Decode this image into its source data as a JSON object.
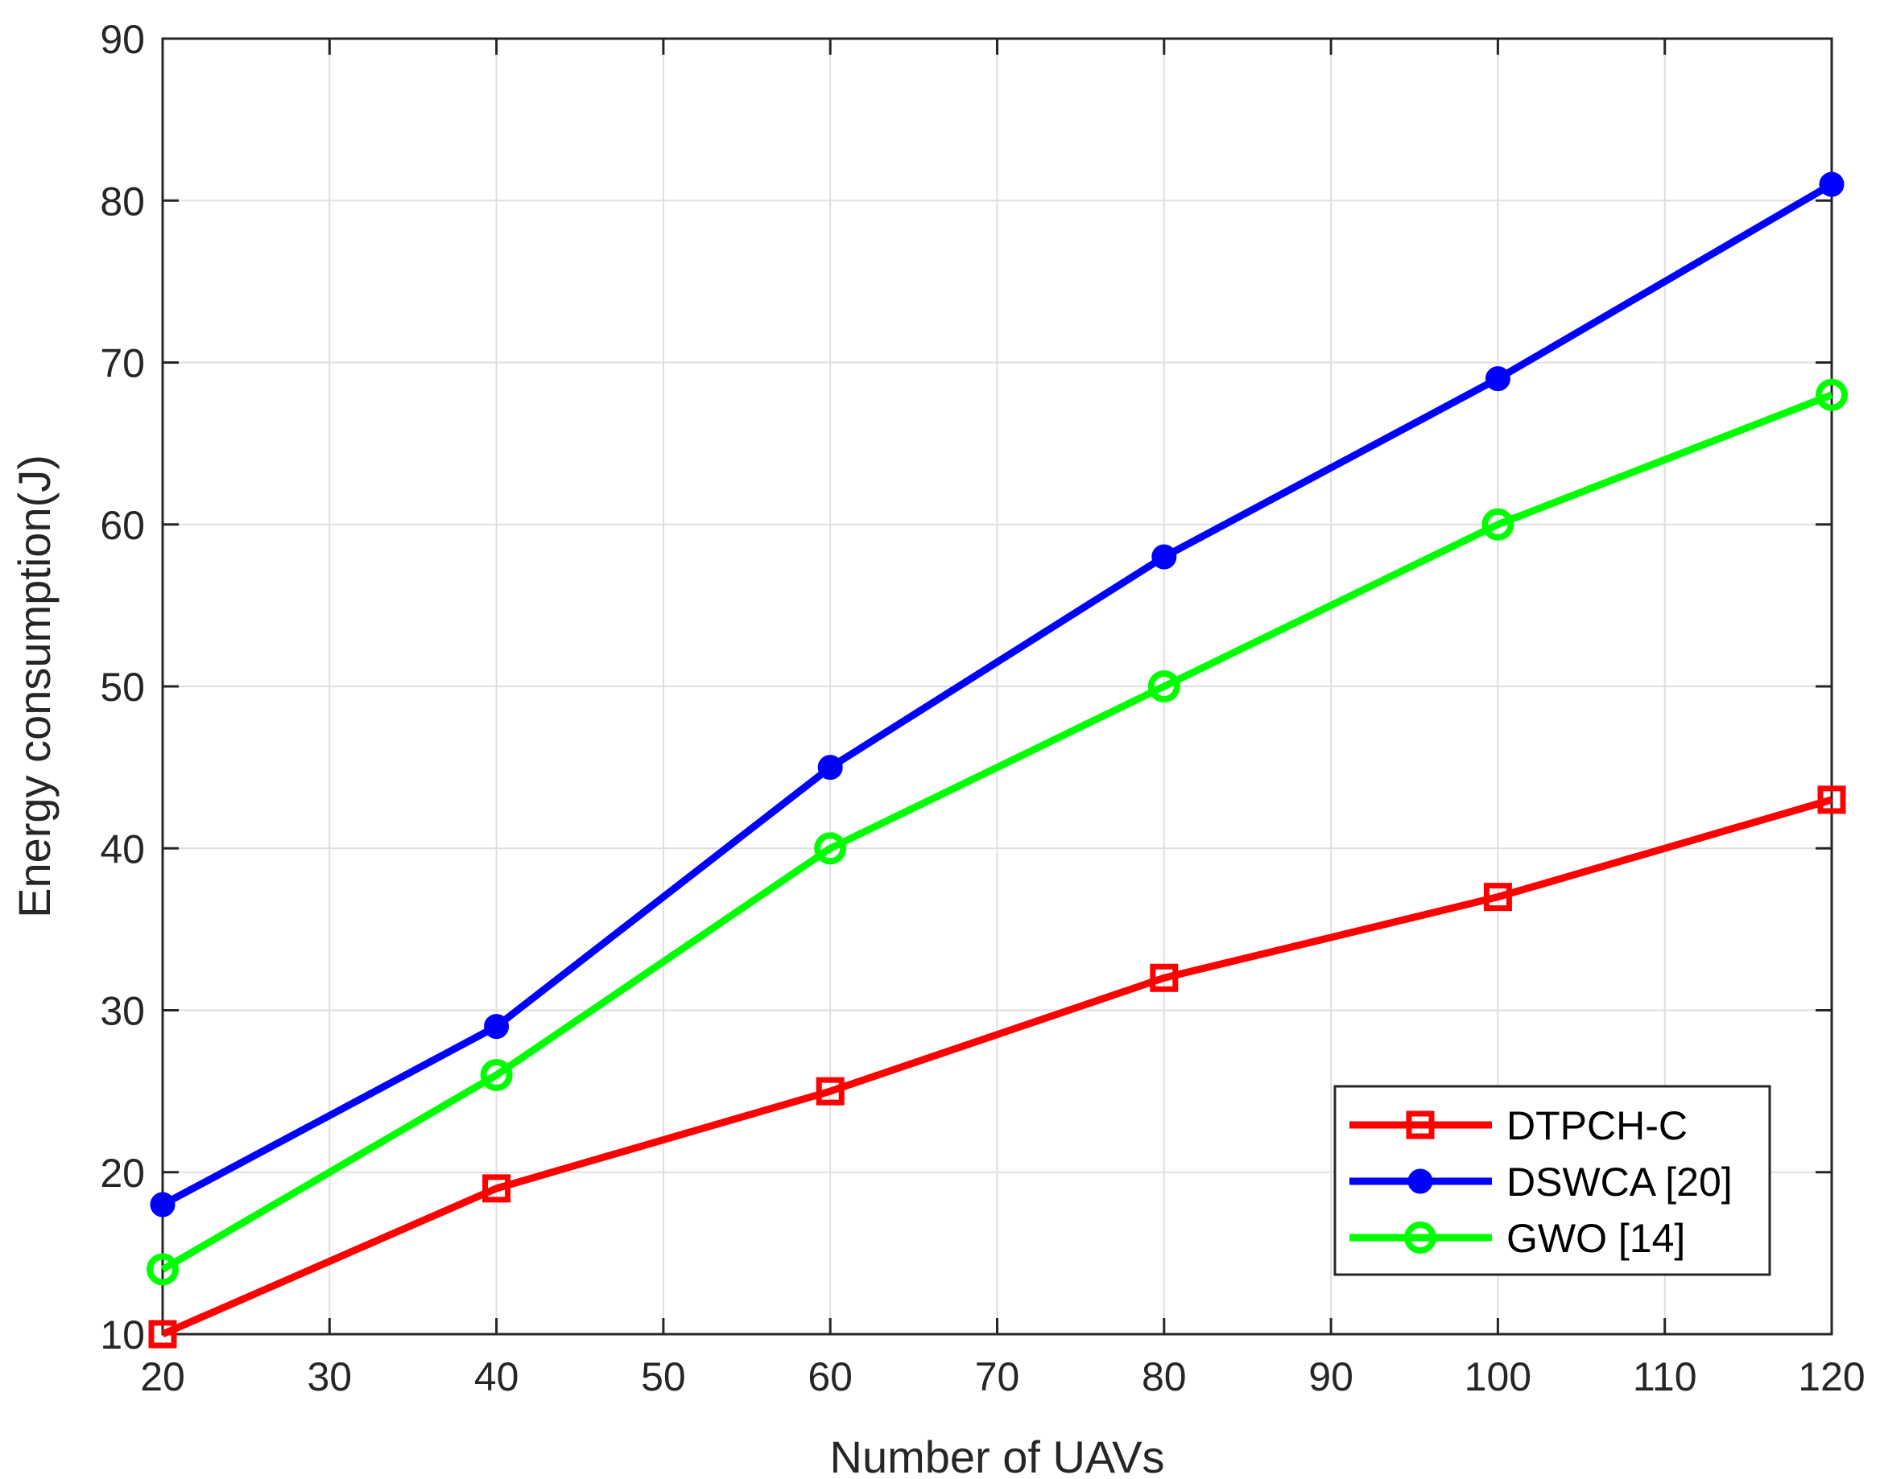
{
  "chart_data": {
    "type": "line",
    "title": "",
    "xlabel": "Number of UAVs",
    "ylabel": "Energy consumption(J)",
    "xlim": [
      20,
      120
    ],
    "ylim": [
      10,
      90
    ],
    "xticks": [
      "20",
      "30",
      "40",
      "50",
      "60",
      "70",
      "80",
      "90",
      "100",
      "110",
      "120"
    ],
    "yticks": [
      "10",
      "20",
      "30",
      "40",
      "50",
      "60",
      "70",
      "80",
      "90"
    ],
    "grid": true,
    "legend_position": "bottom-right",
    "x": [
      20,
      40,
      60,
      80,
      100,
      120
    ],
    "series": [
      {
        "name": "DTPCH-C",
        "color": "#ff0000",
        "marker": "square",
        "values": [
          10,
          19,
          25,
          32,
          37,
          43
        ]
      },
      {
        "name": "DSWCA [20]",
        "color": "#0000ff",
        "marker": "filled-circle",
        "values": [
          18,
          29,
          45,
          58,
          69,
          81
        ]
      },
      {
        "name": "GWO [14]",
        "color": "#00ff00",
        "marker": "open-circle",
        "values": [
          14,
          26,
          40,
          50,
          60,
          68
        ]
      }
    ]
  }
}
